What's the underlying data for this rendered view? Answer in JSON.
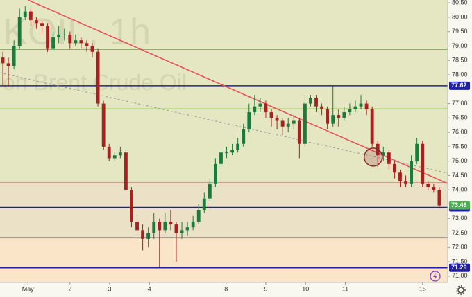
{
  "chart_data": {
    "type": "candlestick",
    "title": "KOIL, 1h",
    "subtitle": "on Brent Crude Oil",
    "xlim": [
      0,
      80
    ],
    "ylim": [
      70.78,
      80.6
    ],
    "yticks": [
      {
        "value": 71,
        "label": "71.00"
      },
      {
        "value": 71.5,
        "label": "71.50"
      },
      {
        "value": 72,
        "label": "72.00"
      },
      {
        "value": 72.5,
        "label": "72.50"
      },
      {
        "value": 73,
        "label": "73.00"
      },
      {
        "value": 74,
        "label": "74.00"
      },
      {
        "value": 74.5,
        "label": "74.50"
      },
      {
        "value": 75,
        "label": "75.00"
      },
      {
        "value": 75.5,
        "label": "75.50"
      },
      {
        "value": 76,
        "label": "76.00"
      },
      {
        "value": 76.5,
        "label": "76.50"
      },
      {
        "value": 77,
        "label": "77.00"
      },
      {
        "value": 78,
        "label": "78.00"
      },
      {
        "value": 78.5,
        "label": "78.50"
      },
      {
        "value": 79,
        "label": "79.00"
      },
      {
        "value": 79.5,
        "label": "79.50"
      },
      {
        "value": 80,
        "label": "80.00"
      },
      {
        "value": 80.5,
        "label": "80.50"
      }
    ],
    "xticks": [
      {
        "value": 5,
        "label": "May"
      },
      {
        "value": 12.5,
        "label": "2"
      },
      {
        "value": 19.6,
        "label": "3"
      },
      {
        "value": 26.7,
        "label": "4"
      },
      {
        "value": 40.4,
        "label": "8"
      },
      {
        "value": 47.5,
        "label": "9"
      },
      {
        "value": 54.6,
        "label": "10"
      },
      {
        "value": 61.7,
        "label": "11"
      },
      {
        "value": 75.5,
        "label": "15"
      }
    ],
    "up_color": "#1e7a3c",
    "down_color": "#a82020",
    "last_price_color": "#4caf50",
    "open": [
      78.6,
      78.4,
      78.3,
      79.0,
      80.0,
      80.2,
      79.9,
      79.8,
      79.7,
      78.9,
      79.3,
      79.4,
      79.4,
      79.1,
      79.2,
      79.1,
      79.0,
      78.8,
      77.0,
      75.5,
      75.1,
      75.2,
      75.3,
      74.0,
      72.9,
      72.6,
      72.3,
      72.5,
      72.9,
      72.6,
      72.9,
      72.8,
      72.5,
      72.6,
      72.7,
      72.9,
      73.3,
      73.7,
      74.2,
      74.9,
      75.3,
      75.3,
      75.4,
      75.6,
      76.1,
      76.7,
      76.9,
      77.0,
      76.7,
      76.5,
      76.4,
      76.2,
      76.3,
      76.4,
      75.6,
      77.0,
      77.2,
      76.9,
      76.8,
      76.3,
      76.6,
      76.5,
      76.7,
      76.8,
      76.9,
      77.0,
      76.8,
      75.6,
      75.2,
      75.3,
      74.9,
      74.6,
      74.3,
      74.2,
      75.0,
      75.6,
      74.2,
      74.1,
      74.0
    ],
    "high": [
      78.8,
      78.6,
      79.2,
      80.3,
      80.4,
      80.3,
      80.0,
      79.9,
      79.8,
      79.5,
      79.7,
      79.6,
      79.5,
      79.4,
      79.3,
      79.2,
      79.1,
      78.9,
      77.1,
      75.6,
      75.3,
      75.5,
      75.4,
      74.1,
      73.1,
      72.8,
      72.7,
      73.2,
      73.0,
      73.2,
      73.3,
      72.9,
      72.9,
      72.9,
      73.1,
      73.5,
      73.9,
      74.4,
      75.1,
      75.4,
      75.5,
      75.6,
      75.8,
      76.3,
      77.0,
      77.3,
      77.2,
      77.1,
      76.8,
      76.6,
      76.5,
      76.5,
      76.6,
      76.5,
      77.3,
      77.3,
      77.3,
      77.0,
      76.9,
      77.6,
      76.8,
      76.9,
      77.0,
      77.1,
      77.3,
      77.1,
      76.9,
      75.7,
      75.5,
      75.4,
      75.0,
      74.7,
      74.5,
      75.2,
      75.8,
      75.7,
      74.3,
      74.2,
      74.1
    ],
    "low": [
      77.6,
      77.6,
      78.2,
      78.9,
      79.9,
      79.7,
      79.6,
      79.4,
      78.8,
      78.8,
      79.1,
      79.2,
      78.9,
      79.0,
      78.9,
      78.8,
      78.6,
      76.9,
      75.4,
      75.0,
      75.0,
      75.1,
      73.9,
      72.7,
      72.3,
      71.9,
      72.0,
      72.3,
      71.3,
      72.5,
      72.6,
      71.5,
      72.3,
      72.4,
      72.6,
      72.8,
      73.2,
      73.6,
      74.1,
      74.8,
      75.1,
      75.2,
      75.3,
      75.5,
      76.0,
      76.6,
      76.7,
      76.5,
      76.2,
      76.1,
      75.9,
      76.0,
      76.1,
      75.1,
      75.5,
      76.9,
      76.7,
      76.6,
      76.1,
      76.2,
      76.2,
      76.4,
      76.6,
      76.7,
      76.8,
      76.6,
      75.5,
      74.8,
      75.0,
      74.7,
      74.4,
      74.1,
      74.1,
      74.1,
      74.9,
      74.1,
      74.0,
      73.9,
      73.4
    ],
    "close": [
      78.4,
      78.3,
      79.0,
      80.0,
      80.2,
      79.9,
      79.8,
      79.7,
      78.9,
      79.3,
      79.4,
      79.4,
      79.1,
      79.2,
      79.1,
      79.0,
      78.8,
      77.0,
      75.5,
      75.1,
      75.2,
      75.3,
      74.0,
      72.9,
      72.6,
      72.3,
      72.5,
      72.9,
      72.6,
      72.9,
      72.8,
      72.5,
      72.6,
      72.7,
      72.9,
      73.3,
      73.7,
      74.2,
      74.9,
      75.3,
      75.3,
      75.4,
      75.6,
      76.1,
      76.7,
      76.9,
      77.0,
      76.7,
      76.5,
      76.4,
      76.2,
      76.3,
      76.4,
      75.6,
      77.0,
      77.2,
      76.9,
      76.8,
      76.3,
      76.6,
      76.5,
      76.7,
      76.8,
      76.9,
      77.0,
      76.8,
      75.6,
      75.2,
      75.3,
      74.9,
      74.6,
      74.3,
      74.2,
      75.0,
      75.6,
      74.2,
      74.1,
      74.0,
      73.46
    ],
    "bands": [
      {
        "from": 74.25,
        "to": 80.6,
        "color": "#e5e7c3"
      },
      {
        "from": 72.33,
        "to": 74.25,
        "color": "#ebe1c7"
      },
      {
        "from": 70.78,
        "to": 72.33,
        "color": "#fbe5c8"
      }
    ],
    "price_lines": [
      {
        "value": 78.88,
        "color": "#6cc24a",
        "tagged": false
      },
      {
        "value": 77.62,
        "color": "#1f1fa8",
        "tagged": true
      },
      {
        "value": 76.82,
        "color": "#9bcf5a",
        "tagged": false
      },
      {
        "value": 74.25,
        "color": "#e06060",
        "tagged": false
      },
      {
        "value": 73.39,
        "color": "#1f1fa8",
        "tagged": true
      },
      {
        "value": 72.33,
        "color": "#9a8fc0",
        "tagged": false
      },
      {
        "value": 71.29,
        "color": "#1f1fa8",
        "tagged": true
      }
    ],
    "trend_lines": [
      {
        "from": [
          5,
          80.6
        ],
        "to": [
          80,
          74.22
        ],
        "color": "#e8505b",
        "dashed": false
      },
      {
        "from": [
          0,
          78.07
        ],
        "to": [
          80,
          74.58
        ],
        "color": "#999999",
        "dashed": true
      }
    ],
    "circle": {
      "x": 66.7,
      "y": 75.14,
      "color": "#8b2a2a"
    }
  }
}
